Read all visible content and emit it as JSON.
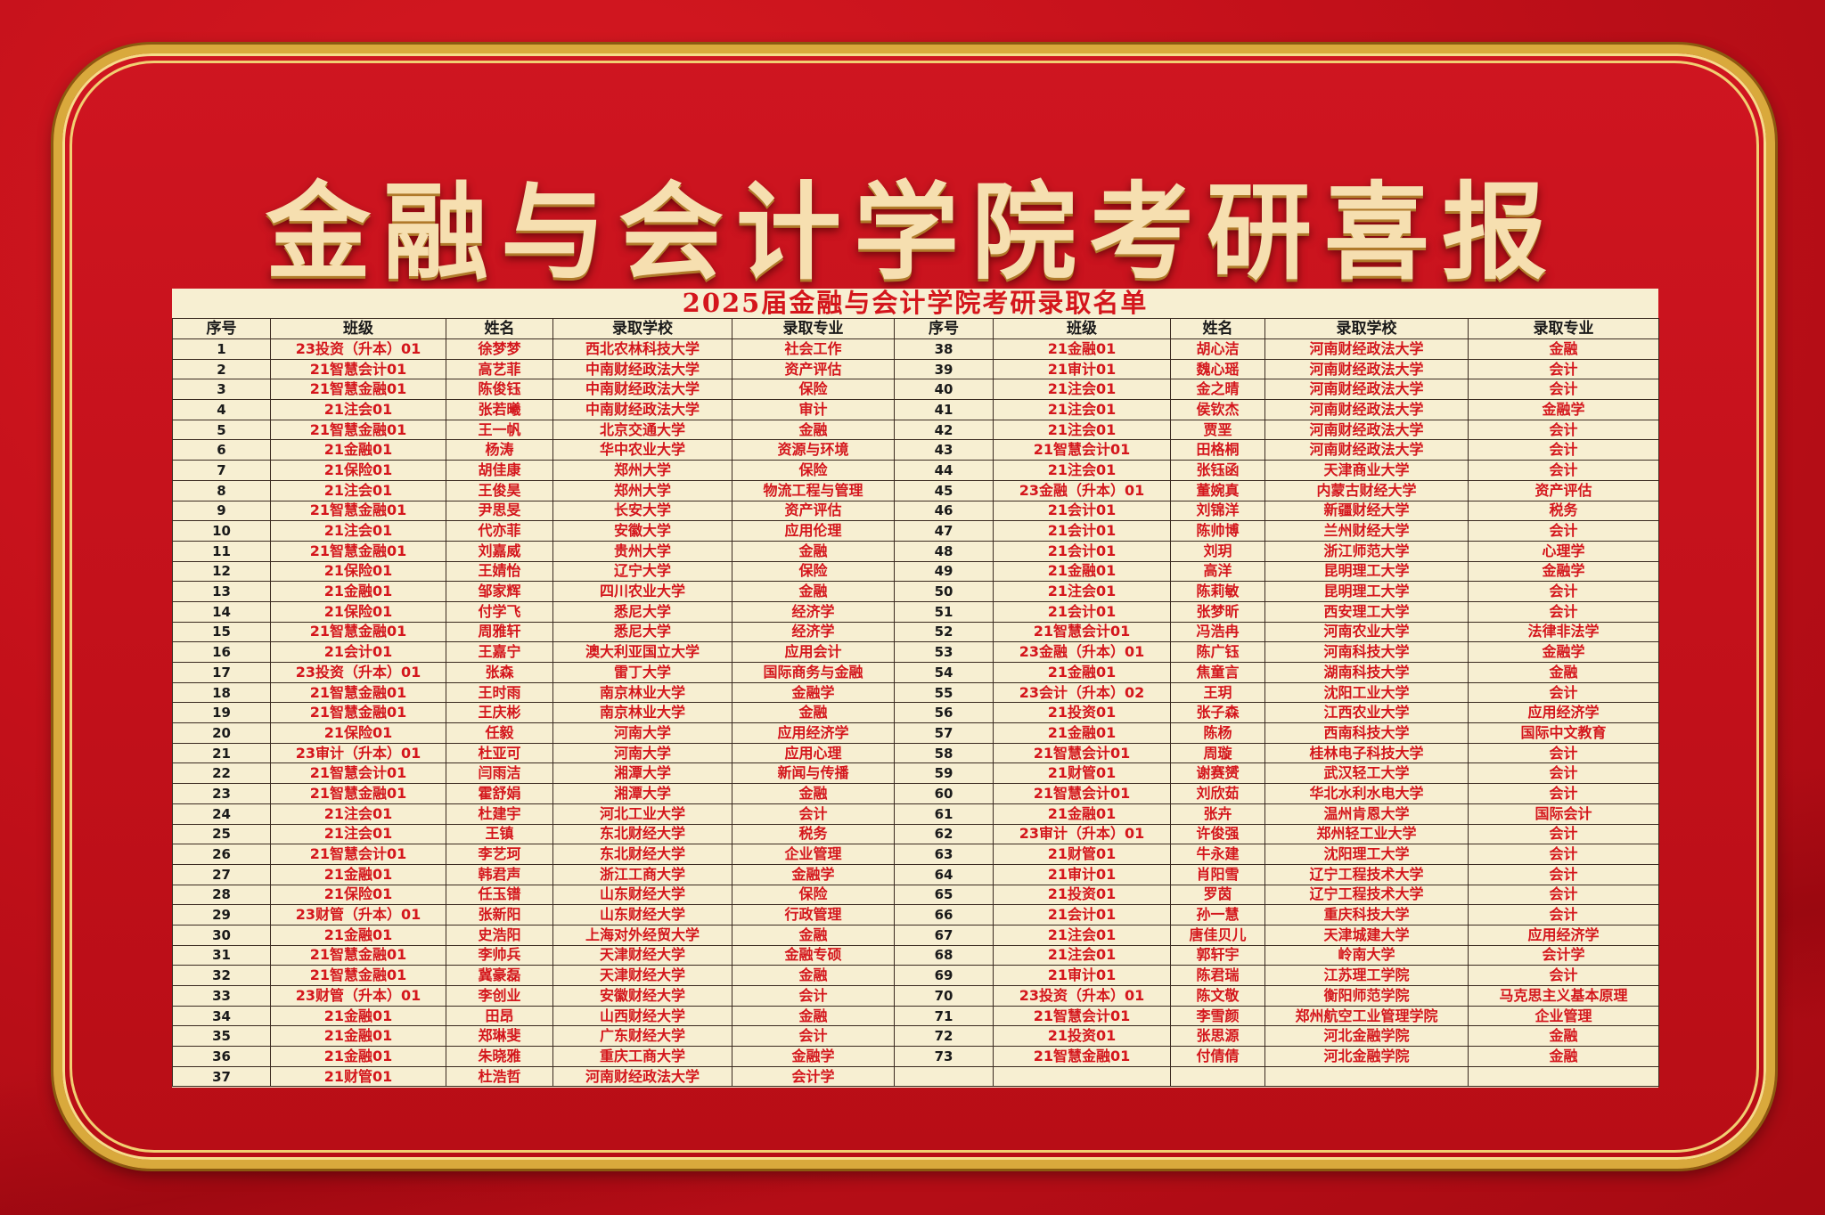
{
  "poster_title": "金融与会计学院考研喜报",
  "sheet_title": "2025届金融与会计学院考研录取名单",
  "headers": [
    "序号",
    "班级",
    "姓名",
    "录取学校",
    "录取专业"
  ],
  "colors": {
    "background": "#c3101a",
    "frame_gold": "#d9a93c",
    "sheet": "#f7efd2",
    "text_red": "#d4161c"
  },
  "left_rows": [
    [
      "1",
      "23投资（升本）01",
      "徐梦梦",
      "西北农林科技大学",
      "社会工作"
    ],
    [
      "2",
      "21智慧会计01",
      "高艺菲",
      "中南财经政法大学",
      "资产评估"
    ],
    [
      "3",
      "21智慧金融01",
      "陈俊钰",
      "中南财经政法大学",
      "保险"
    ],
    [
      "4",
      "21注会01",
      "张若曦",
      "中南财经政法大学",
      "审计"
    ],
    [
      "5",
      "21智慧金融01",
      "王一帆",
      "北京交通大学",
      "金融"
    ],
    [
      "6",
      "21金融01",
      "杨涛",
      "华中农业大学",
      "资源与环境"
    ],
    [
      "7",
      "21保险01",
      "胡佳康",
      "郑州大学",
      "保险"
    ],
    [
      "8",
      "21注会01",
      "王俊昊",
      "郑州大学",
      "物流工程与管理"
    ],
    [
      "9",
      "21智慧金融01",
      "尹思旻",
      "长安大学",
      "资产评估"
    ],
    [
      "10",
      "21注会01",
      "代亦菲",
      "安徽大学",
      "应用伦理"
    ],
    [
      "11",
      "21智慧金融01",
      "刘嘉威",
      "贵州大学",
      "金融"
    ],
    [
      "12",
      "21保险01",
      "王婧怡",
      "辽宁大学",
      "保险"
    ],
    [
      "13",
      "21金融01",
      "邹家辉",
      "四川农业大学",
      "金融"
    ],
    [
      "14",
      "21保险01",
      "付学飞",
      "悉尼大学",
      "经济学"
    ],
    [
      "15",
      "21智慧金融01",
      "周雅轩",
      "悉尼大学",
      "经济学"
    ],
    [
      "16",
      "21会计01",
      "王嘉宁",
      "澳大利亚国立大学",
      "应用会计"
    ],
    [
      "17",
      "23投资（升本）01",
      "张森",
      "雷丁大学",
      "国际商务与金融"
    ],
    [
      "18",
      "21智慧金融01",
      "王时雨",
      "南京林业大学",
      "金融学"
    ],
    [
      "19",
      "21智慧金融01",
      "王庆彬",
      "南京林业大学",
      "金融"
    ],
    [
      "20",
      "21保险01",
      "任毅",
      "河南大学",
      "应用经济学"
    ],
    [
      "21",
      "23审计（升本）01",
      "杜亚可",
      "河南大学",
      "应用心理"
    ],
    [
      "22",
      "21智慧会计01",
      "闫雨洁",
      "湘潭大学",
      "新闻与传播"
    ],
    [
      "23",
      "21智慧金融01",
      "霍舒娟",
      "湘潭大学",
      "金融"
    ],
    [
      "24",
      "21注会01",
      "杜建宇",
      "河北工业大学",
      "会计"
    ],
    [
      "25",
      "21注会01",
      "王镇",
      "东北财经大学",
      "税务"
    ],
    [
      "26",
      "21智慧会计01",
      "李艺珂",
      "东北财经大学",
      "企业管理"
    ],
    [
      "27",
      "21金融01",
      "韩君声",
      "浙江工商大学",
      "金融学"
    ],
    [
      "28",
      "21保险01",
      "任玉镨",
      "山东财经大学",
      "保险"
    ],
    [
      "29",
      "23财管（升本）01",
      "张新阳",
      "山东财经大学",
      "行政管理"
    ],
    [
      "30",
      "21金融01",
      "史浩阳",
      "上海对外经贸大学",
      "金融"
    ],
    [
      "31",
      "21智慧金融01",
      "李帅兵",
      "天津财经大学",
      "金融专硕"
    ],
    [
      "32",
      "21智慧金融01",
      "冀豪磊",
      "天津财经大学",
      "金融"
    ],
    [
      "33",
      "23财管（升本）01",
      "李创业",
      "安徽财经大学",
      "会计"
    ],
    [
      "34",
      "21金融01",
      "田昂",
      "山西财经大学",
      "金融"
    ],
    [
      "35",
      "21金融01",
      "郑琳斐",
      "广东财经大学",
      "会计"
    ],
    [
      "36",
      "21金融01",
      "朱晓雅",
      "重庆工商大学",
      "金融学"
    ],
    [
      "37",
      "21财管01",
      "杜浩哲",
      "河南财经政法大学",
      "会计学"
    ]
  ],
  "right_rows": [
    [
      "38",
      "21金融01",
      "胡心洁",
      "河南财经政法大学",
      "金融"
    ],
    [
      "39",
      "21审计01",
      "魏心瑶",
      "河南财经政法大学",
      "会计"
    ],
    [
      "40",
      "21注会01",
      "金之晴",
      "河南财经政法大学",
      "会计"
    ],
    [
      "41",
      "21注会01",
      "侯钦杰",
      "河南财经政法大学",
      "金融学"
    ],
    [
      "42",
      "21注会01",
      "贾垩",
      "河南财经政法大学",
      "会计"
    ],
    [
      "43",
      "21智慧会计01",
      "田格桐",
      "河南财经政法大学",
      "会计"
    ],
    [
      "44",
      "21注会01",
      "张钰函",
      "天津商业大学",
      "会计"
    ],
    [
      "45",
      "23金融（升本）01",
      "董婉真",
      "内蒙古财经大学",
      "资产评估"
    ],
    [
      "46",
      "21会计01",
      "刘锦洋",
      "新疆财经大学",
      "税务"
    ],
    [
      "47",
      "21会计01",
      "陈帅博",
      "兰州财经大学",
      "会计"
    ],
    [
      "48",
      "21会计01",
      "刘玥",
      "浙江师范大学",
      "心理学"
    ],
    [
      "49",
      "21金融01",
      "高洋",
      "昆明理工大学",
      "金融学"
    ],
    [
      "50",
      "21注会01",
      "陈莉敏",
      "昆明理工大学",
      "会计"
    ],
    [
      "51",
      "21会计01",
      "张梦昕",
      "西安理工大学",
      "会计"
    ],
    [
      "52",
      "21智慧会计01",
      "冯浩冉",
      "河南农业大学",
      "法律非法学"
    ],
    [
      "53",
      "23金融（升本）01",
      "陈广钰",
      "河南科技大学",
      "金融学"
    ],
    [
      "54",
      "21金融01",
      "焦童言",
      "湖南科技大学",
      "金融"
    ],
    [
      "55",
      "23会计（升本）02",
      "王玥",
      "沈阳工业大学",
      "会计"
    ],
    [
      "56",
      "21投资01",
      "张子森",
      "江西农业大学",
      "应用经济学"
    ],
    [
      "57",
      "21金融01",
      "陈杨",
      "西南科技大学",
      "国际中文教育"
    ],
    [
      "58",
      "21智慧会计01",
      "周璇",
      "桂林电子科技大学",
      "会计"
    ],
    [
      "59",
      "21财管01",
      "谢赛赟",
      "武汉轻工大学",
      "会计"
    ],
    [
      "60",
      "21智慧会计01",
      "刘欣茹",
      "华北水利水电大学",
      "会计"
    ],
    [
      "61",
      "21金融01",
      "张卉",
      "温州肯恩大学",
      "国际会计"
    ],
    [
      "62",
      "23审计（升本）01",
      "许俊强",
      "郑州轻工业大学",
      "会计"
    ],
    [
      "63",
      "21财管01",
      "牛永建",
      "沈阳理工大学",
      "会计"
    ],
    [
      "64",
      "21审计01",
      "肖阳雪",
      "辽宁工程技术大学",
      "会计"
    ],
    [
      "65",
      "21投资01",
      "罗茵",
      "辽宁工程技术大学",
      "会计"
    ],
    [
      "66",
      "21会计01",
      "孙一慧",
      "重庆科技大学",
      "会计"
    ],
    [
      "67",
      "21注会01",
      "唐佳贝儿",
      "天津城建大学",
      "应用经济学"
    ],
    [
      "68",
      "21注会01",
      "郭轩宇",
      "岭南大学",
      "会计学"
    ],
    [
      "69",
      "21审计01",
      "陈君瑞",
      "江苏理工学院",
      "会计"
    ],
    [
      "70",
      "23投资（升本）01",
      "陈文敬",
      "衡阳师范学院",
      "马克思主义基本原理"
    ],
    [
      "71",
      "21智慧会计01",
      "李雪颜",
      "郑州航空工业管理学院",
      "企业管理"
    ],
    [
      "72",
      "21投资01",
      "张思源",
      "河北金融学院",
      "金融"
    ],
    [
      "73",
      "21智慧金融01",
      "付倩倩",
      "河北金融学院",
      "金融"
    ]
  ]
}
